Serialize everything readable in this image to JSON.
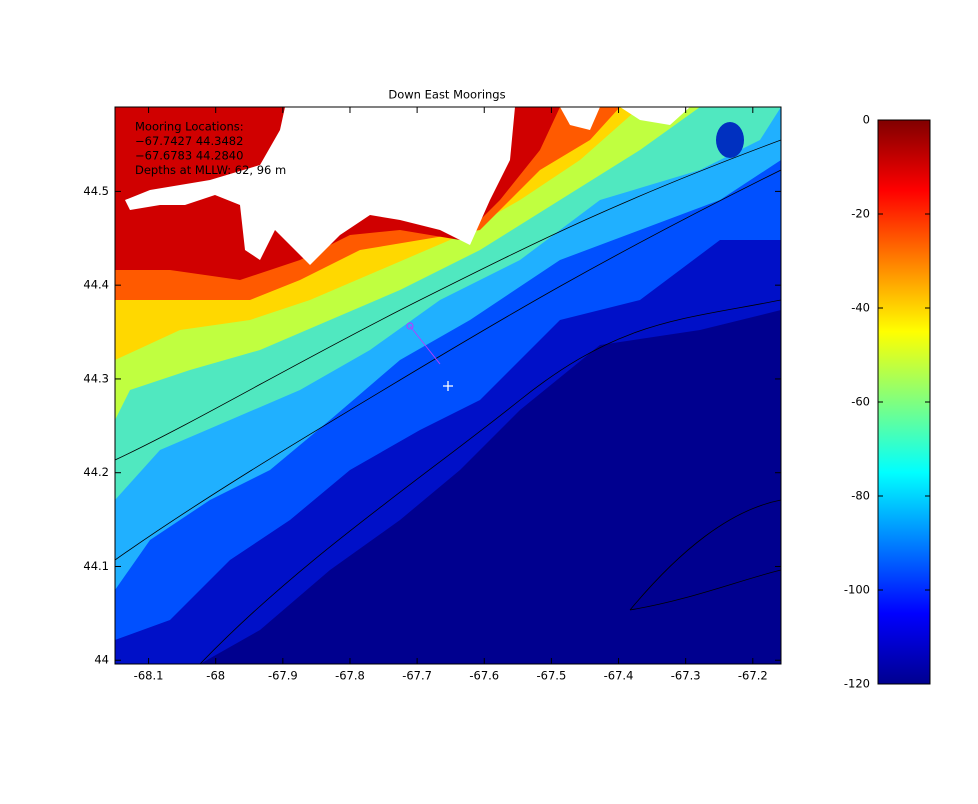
{
  "chart_data": {
    "type": "heatmap",
    "title": "Down East Moorings",
    "annotations": [
      "Mooring Locations:",
      "−67.7427 44.3482",
      "−67.6783 44.2840",
      "Depths at MLLW:  62, 96 m"
    ],
    "xlim": [
      -68.15,
      -67.158
    ],
    "ylim": [
      43.996,
      44.59
    ],
    "xticks": [
      -68.1,
      -68,
      -67.9,
      -67.8,
      -67.7,
      -67.6,
      -67.5,
      -67.4,
      -67.3,
      -67.2
    ],
    "yticks": [
      44,
      44.1,
      44.2,
      44.3,
      44.4,
      44.5
    ],
    "colormap": "jet",
    "colorbar": {
      "clim": [
        -120,
        0
      ],
      "ticks": [
        0,
        -20,
        -40,
        -60,
        -80,
        -100,
        -120
      ]
    }
  }
}
